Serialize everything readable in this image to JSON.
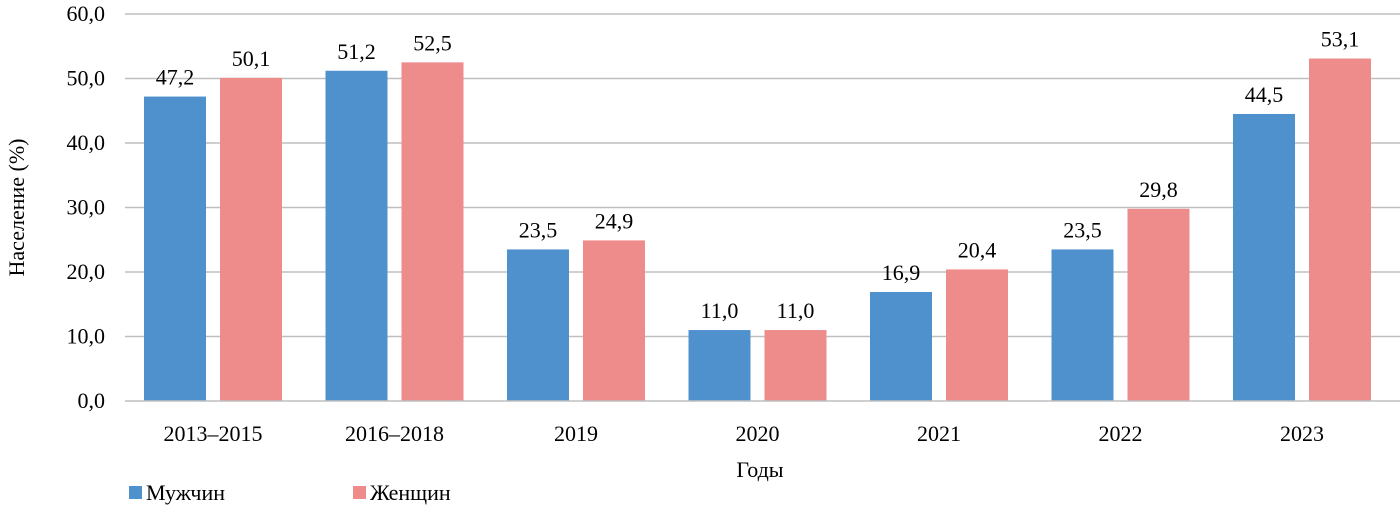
{
  "chart_data": {
    "type": "bar",
    "categories": [
      "2013–2015",
      "2016–2018",
      "2019",
      "2020",
      "2021",
      "2022",
      "2023"
    ],
    "series": [
      {
        "name": "Мужчин",
        "color": "#4f91cd",
        "values": [
          47.2,
          51.2,
          23.5,
          11.0,
          16.9,
          23.5,
          44.5
        ],
        "labels": [
          "47,2",
          "51,2",
          "23,5",
          "11,0",
          "16,9",
          "23,5",
          "44,5"
        ]
      },
      {
        "name": "Женщин",
        "color": "#ee8c8c",
        "values": [
          50.1,
          52.5,
          24.9,
          11.0,
          20.4,
          29.8,
          53.1
        ],
        "labels": [
          "50,1",
          "52,5",
          "24,9",
          "11,0",
          "20,4",
          "29,8",
          "53,1"
        ]
      }
    ],
    "xlabel": "Годы",
    "ylabel": "Население (%)",
    "ylim": [
      0,
      60
    ],
    "yticks": [
      0,
      10,
      20,
      30,
      40,
      50,
      60
    ],
    "ytick_labels": [
      "0,0",
      "10,0",
      "20,0",
      "30,0",
      "40,0",
      "50,0",
      "60,0"
    ],
    "grid": true,
    "gridline_color": "#bfbfbf",
    "legend_position": "bottom-left"
  }
}
